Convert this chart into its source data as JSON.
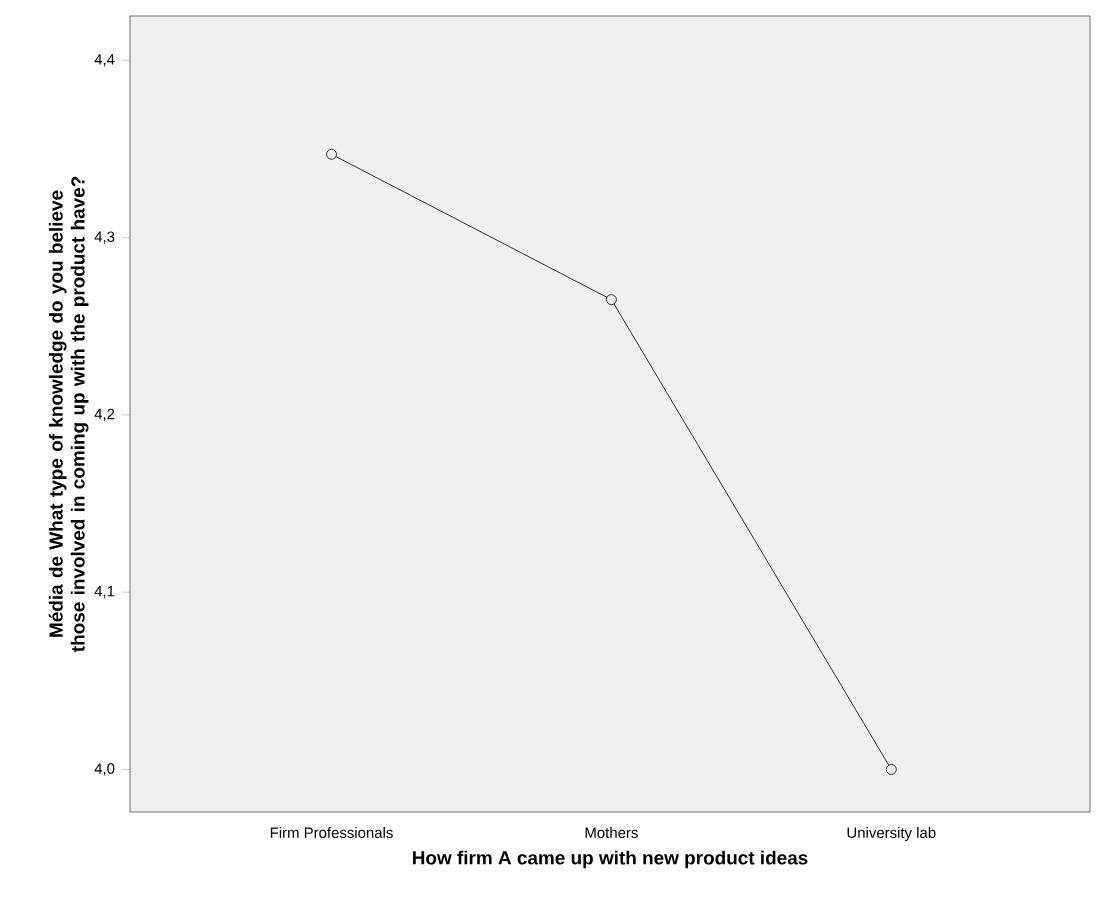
{
  "chart_data": {
    "type": "line",
    "xlabel": "How firm A came up with new product ideas",
    "ylabel": "Média de What type of knowledge do you believe those involved in coming up with the product have?",
    "categories": [
      "Firm Professionals",
      "Mothers",
      "University lab"
    ],
    "values": [
      4.347,
      4.265,
      4.0
    ],
    "color": "#000000",
    "marker": "circle",
    "line_style": "solid",
    "ylim": [
      3.976,
      4.425
    ],
    "yticks": [
      {
        "value": 4.0,
        "label": "4,0"
      },
      {
        "value": 4.1,
        "label": "4,1"
      },
      {
        "value": 4.2,
        "label": "4,2"
      },
      {
        "value": 4.3,
        "label": "4,3"
      },
      {
        "value": 4.4,
        "label": "4,4"
      }
    ]
  }
}
